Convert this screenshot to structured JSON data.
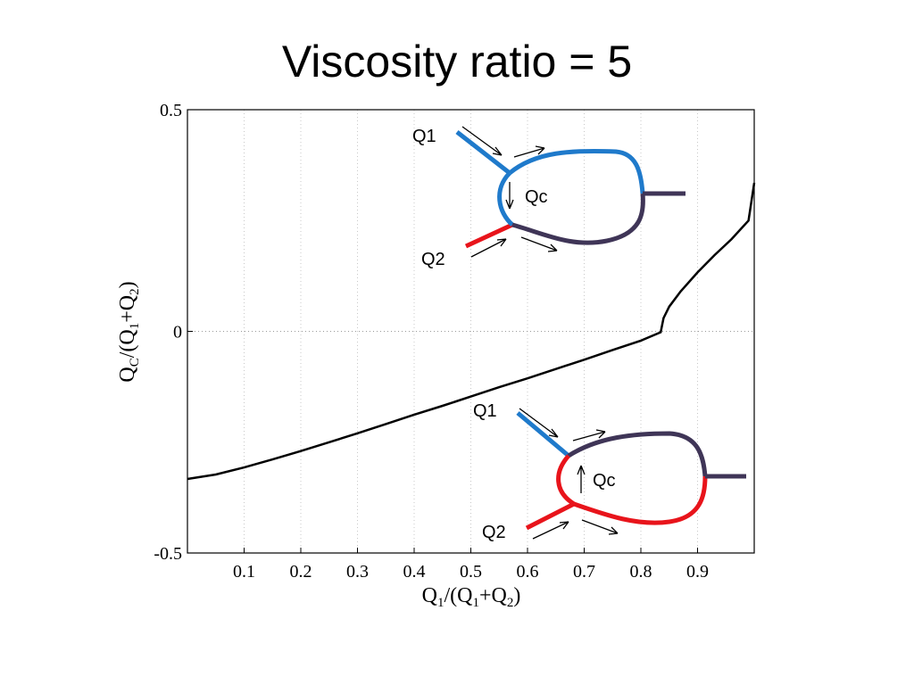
{
  "title": "Viscosity ratio = 5",
  "colors": {
    "curve": "#000000",
    "q1_branch": "#1f7acb",
    "q2_branch": "#e8141b",
    "outlet": "#3f3557",
    "grid": "#c8c8c8"
  },
  "chart_data": {
    "type": "line",
    "title": "Viscosity ratio = 5",
    "xlabel": {
      "main": "Q",
      "sub1": "1",
      "mid": "/(Q",
      "sub2": "1",
      "mid2": "+Q",
      "sub3": "2",
      "end": ")"
    },
    "ylabel": {
      "main": "Q",
      "sub1": "C",
      "mid": "/(Q",
      "sub2": "1",
      "mid2": "+Q",
      "sub3": "2",
      "end": ")"
    },
    "xlim": [
      0,
      1
    ],
    "ylim": [
      -0.5,
      0.5
    ],
    "grid": "vertical dotted",
    "xticks": [
      {
        "v": 0.1,
        "label": "0.1"
      },
      {
        "v": 0.2,
        "label": "0.2"
      },
      {
        "v": 0.3,
        "label": "0.3"
      },
      {
        "v": 0.4,
        "label": "0.4"
      },
      {
        "v": 0.5,
        "label": "0.5"
      },
      {
        "v": 0.6,
        "label": "0.6"
      },
      {
        "v": 0.7,
        "label": "0.7"
      },
      {
        "v": 0.8,
        "label": "0.8"
      },
      {
        "v": 0.9,
        "label": "0.9"
      }
    ],
    "yticks": [
      {
        "v": 0.5,
        "label": "0.5"
      },
      {
        "v": 0,
        "label": "0"
      },
      {
        "v": -0.5,
        "label": "-0.5"
      }
    ],
    "series": [
      {
        "x": [
          0.0,
          0.05,
          0.1,
          0.15,
          0.2,
          0.25,
          0.3,
          0.35,
          0.4,
          0.45,
          0.5,
          0.55,
          0.6,
          0.65,
          0.7,
          0.75,
          0.8,
          0.835,
          0.84,
          0.85,
          0.87,
          0.9,
          0.93,
          0.96,
          0.99,
          1.0
        ],
        "y": [
          -0.333,
          -0.323,
          -0.307,
          -0.289,
          -0.27,
          -0.25,
          -0.23,
          -0.209,
          -0.188,
          -0.168,
          -0.147,
          -0.126,
          -0.106,
          -0.085,
          -0.064,
          -0.042,
          -0.021,
          -0.002,
          0.03,
          0.056,
          0.09,
          0.133,
          0.172,
          0.208,
          0.25,
          0.335
        ]
      }
    ],
    "annotations": {
      "top": {
        "q1": "Q1",
        "q2": "Q2",
        "qc": "Qc"
      },
      "bottom": {
        "q1": "Q1",
        "q2": "Q2",
        "qc": "Qc"
      }
    }
  }
}
